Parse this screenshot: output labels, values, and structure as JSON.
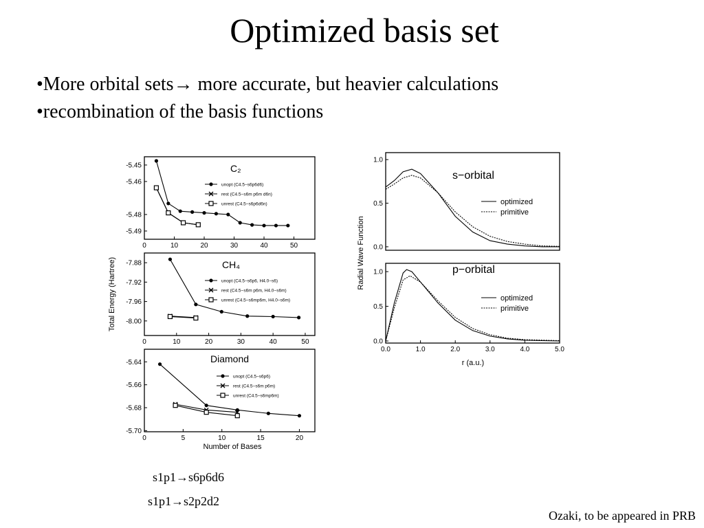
{
  "title": "Optimized basis set",
  "bullets": [
    "•More orbital sets→ more accurate, but heavier calculations",
    "•recombination of the basis functions"
  ],
  "captions": [
    "s1p1→s6p6d6",
    "s1p1→s2p2d2"
  ],
  "citation": "Ozaki, to be appeared in PRB",
  "chart_data": [
    {
      "type": "line",
      "title": "C₂",
      "color": "#000",
      "xlim": [
        0,
        57
      ],
      "ylim": [
        -5.495,
        -5.445
      ],
      "xticks": [
        0,
        10,
        20,
        30,
        40,
        50
      ],
      "yticks": [
        -5.45,
        -5.46,
        -5.48,
        -5.49
      ],
      "series": [
        {
          "name": "unopt (C4.5−s6p6d6)",
          "marker": "circle",
          "dash": "solid",
          "x": [
            4,
            8,
            12,
            16,
            20,
            24,
            28,
            32,
            36,
            40,
            44,
            48
          ],
          "values": [
            -5.4475,
            -5.4733,
            -5.478,
            -5.4785,
            -5.479,
            -5.4795,
            -5.48,
            -5.485,
            -5.4863,
            -5.4867,
            -5.4867,
            -5.4867
          ]
        },
        {
          "name": "rest (C4.5−s6m p6m d6n)",
          "marker": "x",
          "dash": "solid",
          "x": [
            4,
            8,
            13,
            18
          ],
          "values": [
            -5.4638,
            -5.479,
            -5.485,
            -5.4862
          ]
        },
        {
          "name": "unrest (C4.5−s6p6d6n)",
          "marker": "square",
          "dash": "solid",
          "x": [
            4,
            8,
            13,
            18
          ],
          "values": [
            -5.4638,
            -5.479,
            -5.485,
            -5.4862
          ]
        }
      ]
    },
    {
      "type": "line",
      "title": "CH₄",
      "color": "#000",
      "ylabel": "Total Energy (Hartree)",
      "xlim": [
        0,
        53
      ],
      "ylim": [
        -8.03,
        -7.86
      ],
      "xticks": [
        0,
        10,
        20,
        30,
        40,
        50
      ],
      "yticks": [
        -7.88,
        -7.92,
        -7.96,
        {
          "value": -8,
          "label": "-8.00"
        }
      ],
      "series": [
        {
          "name": "unopt (C4.5−s6p6, H4.0−s6)",
          "marker": "circle",
          "dash": "solid",
          "x": [
            8,
            16,
            24,
            32,
            40,
            48
          ],
          "values": [
            -7.873,
            -7.966,
            -7.981,
            -7.99,
            -7.991,
            -7.993
          ]
        },
        {
          "name": "rest (C4.5−s6m p6m, H4.0−s6m)",
          "marker": "x",
          "dash": "solid",
          "x": [
            8,
            16
          ],
          "values": [
            -7.99,
            -7.993
          ]
        },
        {
          "name": "unrest (C4.5−s6mp6m, H4.0−s6m)",
          "marker": "square",
          "dash": "solid",
          "x": [
            8,
            16
          ],
          "values": [
            -7.991,
            -7.994
          ]
        }
      ]
    },
    {
      "type": "line",
      "title": "Diamond",
      "color": "#000",
      "xlabel": "Number of Bases",
      "xlim": [
        0,
        22
      ],
      "ylim": [
        -5.701,
        -5.629
      ],
      "xticks": [
        0,
        5,
        10,
        15,
        20
      ],
      "yticks": [
        -5.64,
        -5.66,
        -5.68,
        {
          "value": -5.7,
          "label": "-5.70"
        }
      ],
      "series": [
        {
          "name": "unopt (C4.5−s6p6)",
          "marker": "circle",
          "dash": "solid",
          "x": [
            2,
            8,
            12,
            16,
            20
          ],
          "values": [
            -5.642,
            -5.678,
            -5.682,
            -5.685,
            -5.687
          ]
        },
        {
          "name": "rest (C4.5−s6m p6m)",
          "marker": "x",
          "dash": "solid",
          "x": [
            4,
            8,
            12
          ],
          "values": [
            -5.677,
            -5.682,
            -5.684
          ]
        },
        {
          "name": "unrest (C4.5−s6mp6m)",
          "marker": "square",
          "dash": "solid",
          "x": [
            4,
            8,
            12
          ],
          "values": [
            -5.678,
            -5.684,
            -5.687
          ]
        }
      ]
    },
    {
      "type": "line",
      "title": "s−orbital",
      "color": "#000",
      "ylabel": "Radial Wave Function",
      "xlim": [
        0,
        5
      ],
      "ylim": [
        -0.04,
        1.08
      ],
      "yticks": [
        {
          "value": 0,
          "label": "0.0"
        },
        {
          "value": 0.5,
          "label": "0.5"
        },
        {
          "value": 1,
          "label": "1.0"
        }
      ],
      "series": [
        {
          "name": "optimized",
          "marker": "none",
          "dash": "solid",
          "x": [
            0,
            0.25,
            0.5,
            0.75,
            1,
            1.5,
            2,
            2.5,
            3,
            3.5,
            4,
            4.5,
            5
          ],
          "values": [
            0.685,
            0.76,
            0.86,
            0.89,
            0.84,
            0.62,
            0.35,
            0.17,
            0.07,
            0.03,
            0.01,
            0,
            0
          ]
        },
        {
          "name": "primitive",
          "marker": "none",
          "dash": "dotted",
          "x": [
            0,
            0.25,
            0.5,
            0.75,
            1,
            1.5,
            2,
            2.5,
            3,
            3.5,
            4,
            4.5,
            5
          ],
          "values": [
            0.66,
            0.72,
            0.79,
            0.82,
            0.79,
            0.62,
            0.4,
            0.23,
            0.12,
            0.06,
            0.03,
            0.01,
            0.005
          ]
        }
      ]
    },
    {
      "type": "line",
      "title": "p−orbital",
      "color": "#000",
      "xlabel": "r (a.u.)",
      "xlim": [
        0,
        5
      ],
      "ylim": [
        -0.03,
        1.12
      ],
      "xticks": [
        {
          "value": 0,
          "label": "0.0"
        },
        {
          "value": 1,
          "label": "1.0"
        },
        {
          "value": 2,
          "label": "2.0"
        },
        {
          "value": 3,
          "label": "3.0"
        },
        {
          "value": 4,
          "label": "4.0"
        },
        {
          "value": 5,
          "label": "5.0"
        }
      ],
      "yticks": [
        {
          "value": 0,
          "label": "0.0"
        },
        {
          "value": 0.5,
          "label": "0.5"
        },
        {
          "value": 1,
          "label": "1.0"
        }
      ],
      "series": [
        {
          "name": "optimized",
          "marker": "none",
          "dash": "solid",
          "x": [
            0,
            0.25,
            0.5,
            0.6,
            0.75,
            1,
            1.5,
            2,
            2.5,
            3,
            3.5,
            4,
            5
          ],
          "values": [
            0,
            0.55,
            0.98,
            1.03,
            1,
            0.85,
            0.55,
            0.3,
            0.15,
            0.07,
            0.03,
            0.01,
            0
          ]
        },
        {
          "name": "primitive",
          "marker": "none",
          "dash": "dotted",
          "x": [
            0,
            0.25,
            0.5,
            0.7,
            1,
            1.5,
            2,
            2.5,
            3,
            3.5,
            4,
            5
          ],
          "values": [
            0,
            0.48,
            0.88,
            0.94,
            0.85,
            0.58,
            0.34,
            0.18,
            0.09,
            0.04,
            0.02,
            0.005
          ]
        }
      ]
    }
  ]
}
